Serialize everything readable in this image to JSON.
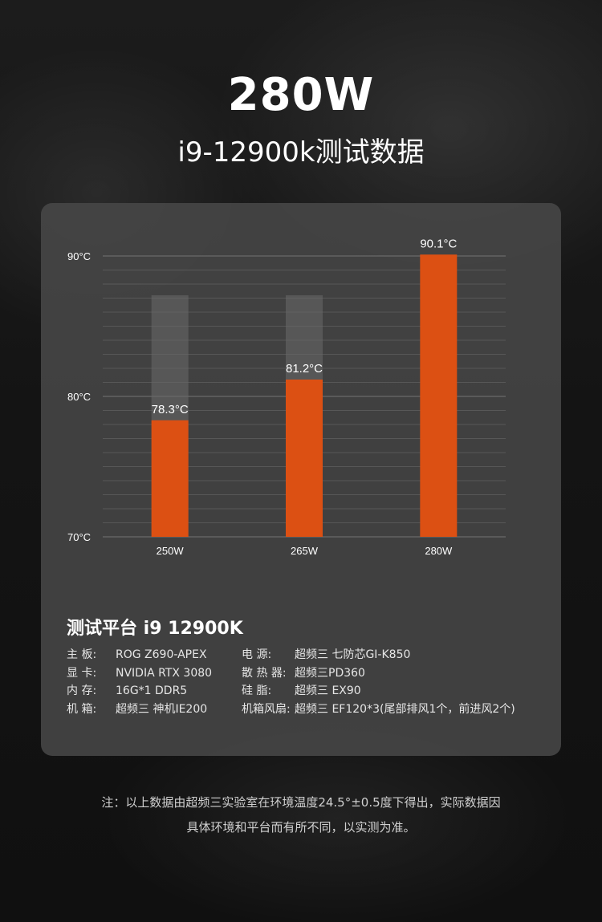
{
  "header": {
    "title": "280W",
    "subtitle": "i9-12900k测试数据"
  },
  "colors": {
    "bar": "#dc5013",
    "bar_ghost": "#6a6a6a",
    "grid": "#7a7a7a",
    "card_bg": "#4a4a4a"
  },
  "chart_data": {
    "type": "bar",
    "categories": [
      "250W",
      "265W",
      "280W"
    ],
    "values": [
      78.3,
      81.2,
      90.1
    ],
    "value_labels": [
      "78.3°C",
      "81.2°C",
      "90.1°C"
    ],
    "ghost_values": [
      87.2,
      87.2,
      null
    ],
    "ylim": [
      70,
      90
    ],
    "yticks": [
      70,
      80,
      90
    ],
    "ytick_labels": [
      "70°C",
      "80°C",
      "90°C"
    ],
    "title": "",
    "xlabel": "",
    "ylabel": "",
    "grid": true,
    "legend": "none"
  },
  "platform": {
    "title": "测试平台 i9  12900K",
    "left": [
      {
        "key": "主   板:",
        "value": "ROG Z690-APEX"
      },
      {
        "key": "显   卡:",
        "value": "NVIDIA RTX 3080"
      },
      {
        "key": "内   存:",
        "value": "16G*1 DDR5"
      },
      {
        "key": "机   箱:",
        "value": "超频三 神机IE200"
      }
    ],
    "right": [
      {
        "key": "电     源:",
        "value": "超频三 七防芯GI-K850"
      },
      {
        "key": "散 热 器:",
        "value": "超频三PD360"
      },
      {
        "key": "硅     脂:",
        "value": "超频三 EX90"
      },
      {
        "key": "机箱风扇:",
        "value": "超频三 EF120*3(尾部排风1个，前进风2个)"
      }
    ]
  },
  "footnote": {
    "line1": "注：以上数据由超频三实验室在环境温度24.5°±0.5度下得出，实际数据因",
    "line2": "具体环境和平台而有所不同，以实测为准。"
  }
}
